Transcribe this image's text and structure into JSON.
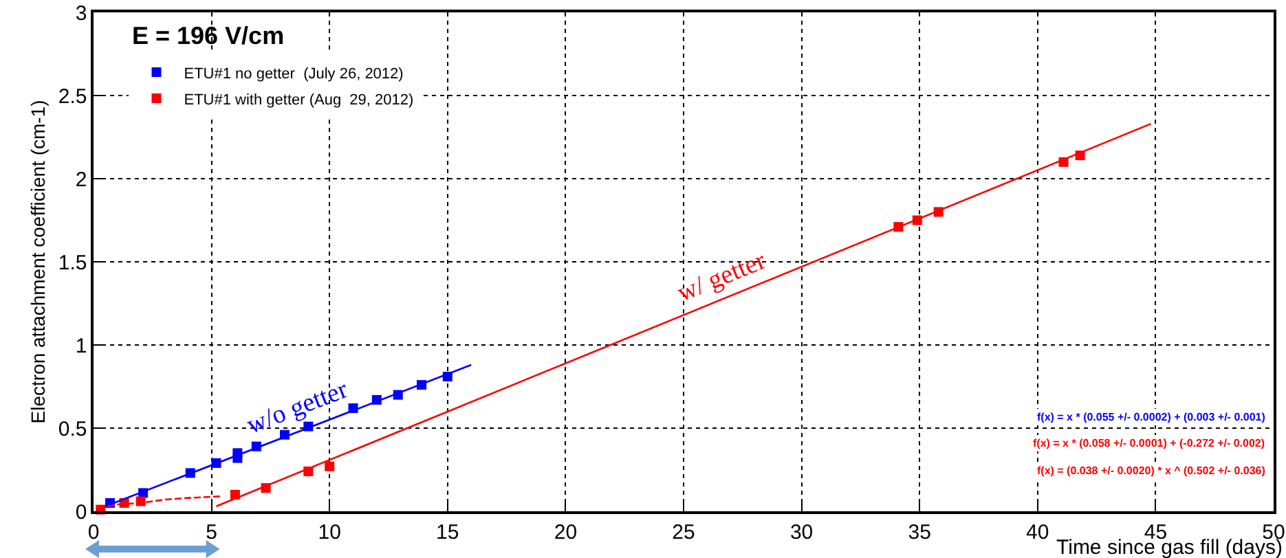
{
  "chart_data": {
    "type": "scatter",
    "xlabel": "Time since gas fill (days)",
    "ylabel": "Electron attachment coefficient (cm-1)",
    "xlim": [
      0,
      50
    ],
    "xticks": [
      0,
      5,
      10,
      15,
      20,
      25,
      30,
      35,
      40,
      45,
      50
    ],
    "ylim": [
      0,
      3
    ],
    "yticks": [
      0,
      0.5,
      1,
      1.5,
      2,
      2.5,
      3
    ],
    "grid": true,
    "legend": "top left",
    "title": "E = 196 V/cm",
    "annotations": [
      {
        "text": "w/o getter",
        "x": 9,
        "y": 0.5
      },
      {
        "text": "w/ getter",
        "x": 27,
        "y": 1.29
      },
      "f(x) = x * (0.055 +/- 0.0002) + (0.003 +/- 0.001)",
      "f(x) = x * (0.058 +/- 0.0001) + (-0.272 +/- 0.002)",
      "f(x) = (0.038 +/- 0.0020) * x ^ (0.502 +/- 0.036)"
    ],
    "series": [
      {
        "name": "ETU#1 no getter  (July 26, 2012)",
        "marker": "square",
        "color": "#0000ff",
        "x": [
          0.7,
          2.1,
          4.1,
          5.2,
          6.1,
          6.1,
          6.9,
          8.1,
          9.1,
          11,
          12,
          12.9,
          13.9,
          15
        ],
        "values": [
          0.05,
          0.11,
          0.23,
          0.29,
          0.35,
          0.32,
          0.39,
          0.46,
          0.51,
          0.62,
          0.67,
          0.7,
          0.76,
          0.81
        ]
      },
      {
        "name": "ETU#1 with getter (Aug  29, 2012)",
        "marker": "square",
        "color": "#ff0000",
        "x": [
          0.3,
          1.3,
          2,
          6,
          7.3,
          9.1,
          10,
          34.1,
          34.9,
          35.8,
          41.1,
          41.8
        ],
        "values": [
          0.01,
          0.05,
          0.06,
          0.1,
          0.14,
          0.24,
          0.27,
          1.71,
          1.75,
          1.8,
          2.1,
          2.14
        ]
      },
      {
        "type": "line",
        "marker": "none",
        "line_style": "solid",
        "color": "#0000ff",
        "x": [
          0.5,
          16
        ],
        "values": [
          0.03,
          0.88
        ]
      },
      {
        "type": "line",
        "marker": "none",
        "line_style": "solid",
        "color": "#ff0000",
        "x": [
          5.2,
          44.8
        ],
        "values": [
          0.03,
          2.33
        ]
      },
      {
        "type": "line",
        "marker": "none",
        "line_style": "dashed",
        "color": "#ff0000",
        "x": [
          0.2,
          1,
          2,
          3,
          4,
          5.4
        ],
        "values": [
          0.02,
          0.04,
          0.05,
          0.07,
          0.08,
          0.09
        ]
      }
    ]
  }
}
